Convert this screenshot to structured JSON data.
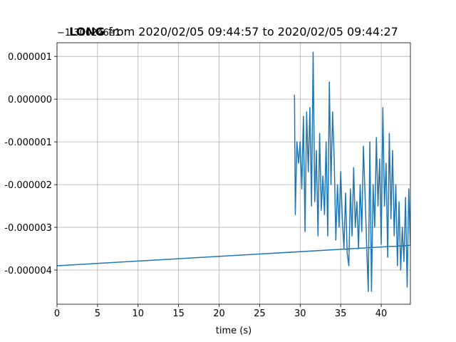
{
  "chart_data": {
    "type": "line",
    "title_bold": "LONG",
    "title": "from 2020/02/05 09:44:57 to 2020/02/05 09:44:27",
    "offset_text": "−1.300246e1",
    "xlabel": "time (s)",
    "color": "#1f77b4",
    "grid": true,
    "xlim": [
      0,
      43.6
    ],
    "xticks": [
      0,
      5,
      10,
      15,
      20,
      25,
      30,
      35,
      40
    ],
    "ylim": [
      -4.8e-06,
      1.32e-06
    ],
    "yticks": [
      {
        "value": 1e-06,
        "label": "0.000001"
      },
      {
        "value": 0,
        "label": "0.000000"
      },
      {
        "value": -1e-06,
        "label": "-0.000001"
      },
      {
        "value": -2e-06,
        "label": "-0.000002"
      },
      {
        "value": -3e-06,
        "label": "-0.000003"
      },
      {
        "value": -4e-06,
        "label": "-0.000004"
      }
    ],
    "x": [
      29.3,
      29.4,
      29.6,
      29.8,
      30.0,
      30.2,
      30.4,
      30.6,
      30.8,
      31.0,
      31.2,
      31.4,
      31.6,
      31.8,
      32.0,
      32.2,
      32.4,
      32.6,
      32.8,
      33.0,
      33.2,
      33.4,
      33.6,
      33.8,
      34.0,
      34.2,
      34.4,
      34.6,
      34.8,
      35.0,
      35.2,
      35.4,
      35.6,
      35.8,
      36.0,
      36.2,
      36.4,
      36.6,
      36.8,
      37.0,
      37.2,
      37.4,
      37.6,
      37.8,
      38.0,
      38.2,
      38.4,
      38.6,
      38.8,
      39.0,
      39.2,
      39.4,
      39.6,
      39.8,
      40.0,
      40.2,
      40.4,
      40.6,
      40.8,
      41.0,
      41.2,
      41.4,
      41.6,
      41.8,
      42.0,
      42.2,
      42.4,
      42.6,
      42.8,
      43.0,
      43.2,
      43.4,
      43.6,
      0
    ],
    "values": [
      1e-07,
      -2.7e-06,
      -1e-06,
      -1.5e-06,
      -1e-06,
      -2.1e-06,
      -4e-07,
      -3.1e-06,
      -3e-07,
      -1.7e-06,
      -2e-07,
      -2.5e-06,
      1.1e-06,
      -2.4e-06,
      -1.2e-06,
      -3.2e-06,
      -8e-07,
      -2.6e-06,
      -1.8e-06,
      -2.7e-06,
      -1e-06,
      -3.2e-06,
      4e-07,
      -2e-06,
      -3e-07,
      -1.4e-06,
      -3.3e-06,
      -2e-06,
      -3e-06,
      -1.7e-06,
      -2.8e-06,
      -3.5e-06,
      -2.2e-06,
      -3.6e-06,
      -3.9e-06,
      -2.1e-06,
      -3.2e-06,
      -1.6e-06,
      -3e-06,
      -2.4e-06,
      -3.5e-06,
      -2e-06,
      -3.1e-06,
      -1.1e-06,
      -2.2e-06,
      -3.4e-06,
      -4.5e-06,
      -1e-06,
      -4.5e-06,
      -2e-06,
      -3e-06,
      -9e-07,
      -2.5e-06,
      -1.4e-06,
      -3.4e-06,
      -2e-07,
      -2.5e-06,
      -1.5e-06,
      -3.7e-06,
      -8e-07,
      -2.8e-06,
      -1.2e-06,
      -3.2e-06,
      -2e-06,
      -3.9e-06,
      -2.4e-06,
      -4e-06,
      -3e-06,
      -3.8e-06,
      -2.3e-06,
      -4.4e-06,
      -2.1e-06,
      -3.42e-06,
      -3.9e-06
    ]
  }
}
